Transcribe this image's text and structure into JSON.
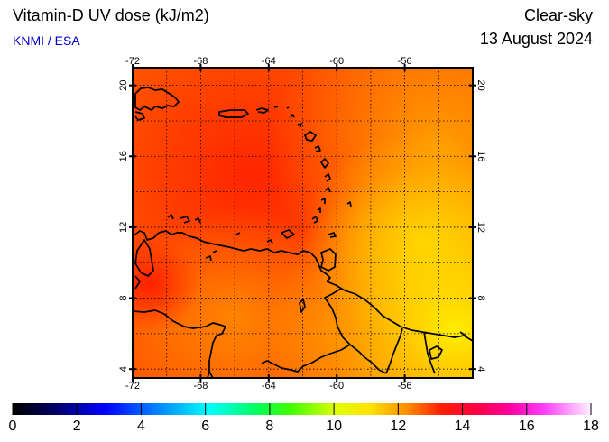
{
  "header": {
    "title": "Vitamin-D UV dose (kJ/m2)",
    "credit": "KNMI / ESA",
    "condition": "Clear-sky",
    "date": "13 August 2024"
  },
  "map": {
    "lon_range": [
      -72,
      -52
    ],
    "lat_range": [
      3.5,
      21
    ],
    "lon_ticks": [
      "-72",
      "-68",
      "-64",
      "-60",
      "-56"
    ],
    "lat_ticks": [
      "20",
      "16",
      "12",
      "8",
      "4"
    ],
    "lon_tick_values": [
      -72,
      -68,
      -64,
      -60,
      -56
    ],
    "lat_tick_values": [
      20,
      16,
      12,
      8,
      4
    ],
    "gridlines": true,
    "field_colors": {
      "north_caribbean": "#ff2a00",
      "central": "#ff5a00",
      "east_atlantic": "#ff9600",
      "southeast": "#ffe000"
    }
  },
  "colorbar": {
    "labels": [
      "0",
      "2",
      "4",
      "6",
      "8",
      "10",
      "12",
      "14",
      "16",
      "18"
    ],
    "values": [
      0,
      2,
      4,
      6,
      8,
      10,
      12,
      14,
      16,
      18
    ]
  }
}
